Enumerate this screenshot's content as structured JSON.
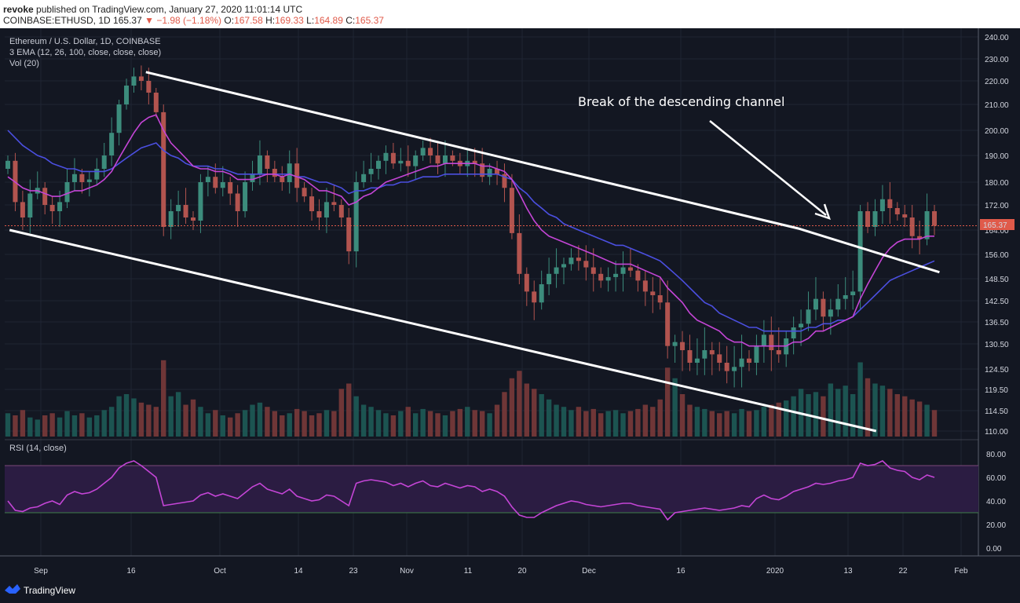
{
  "header": {
    "author": "revoke",
    "published": "published on TradingView.com, January 27, 2020 11:01:14 UTC",
    "symbol": "COINBASE:ETHUSD, 1D",
    "last": "165.37",
    "arrow": "▼",
    "change": "−1.98 (−1.18%)",
    "o_label": "O:",
    "o_value": "167.58",
    "h_label": "H:",
    "h_value": "169.33",
    "l_label": "L:",
    "l_value": "164.89",
    "c_label": "C:",
    "c_value": "165.37"
  },
  "legend": {
    "title": "Ethereum / U.S. Dollar, 1D, COINBASE",
    "ema": "3 EMA (12, 26, 100, close, close, close)",
    "vol": "Vol (20)",
    "rsi": "RSI (14, close)"
  },
  "annotation": "Break of the descending channel",
  "price_badge": "165.37",
  "brand": "TradingView",
  "colors": {
    "background": "#131722",
    "up": "#3c8c7c",
    "down": "#b2544f",
    "ema_fast": "#c445d6",
    "ema_slow": "#4b4fe0",
    "rsi_line": "#c445d6",
    "rsi_band": "#2b1c42",
    "channel": "#ffffff",
    "price_line": "#e05a4a"
  },
  "chart_data": [
    {
      "type": "candlestick",
      "x_ticks": [
        "Sep",
        "16",
        "Oct",
        "14",
        "23",
        "Nov",
        "11",
        "20",
        "Dec",
        "16",
        "2020",
        "13",
        "22",
        "Feb"
      ],
      "y_ticks": [
        "240.00",
        "230.00",
        "220.00",
        "210.00",
        "200.00",
        "190.00",
        "180.00",
        "172.00",
        "164.00",
        "156.00",
        "148.50",
        "142.50",
        "136.50",
        "130.50",
        "124.50",
        "119.50",
        "114.50",
        "110.00"
      ],
      "ylim": [
        110,
        240
      ],
      "last_price": 165.37,
      "closes": [
        188,
        173,
        168,
        176,
        178,
        172,
        170,
        173,
        180,
        183,
        180,
        181,
        185,
        190,
        199,
        210,
        218,
        222,
        220,
        215,
        207,
        165,
        170,
        172,
        168,
        167,
        180,
        182,
        178,
        180,
        176,
        170,
        180,
        183,
        190,
        185,
        182,
        180,
        187,
        178,
        175,
        170,
        168,
        173,
        172,
        168,
        157,
        180,
        183,
        185,
        188,
        191,
        187,
        188,
        186,
        190,
        193,
        190,
        187,
        190,
        188,
        186,
        188,
        187,
        182,
        185,
        183,
        178,
        163,
        150,
        145,
        142,
        147,
        150,
        152,
        153,
        155,
        154,
        152,
        150,
        148,
        149,
        150,
        152,
        151,
        148,
        145,
        144,
        142,
        130,
        131,
        129,
        126,
        127,
        129,
        128,
        126,
        124,
        125,
        127,
        126,
        130,
        133,
        129,
        128,
        132,
        135,
        136,
        140,
        143,
        138,
        140,
        143,
        144,
        145,
        170,
        165,
        170,
        174,
        171,
        169,
        168,
        162,
        161,
        170,
        165.37
      ],
      "ema_fast": [
        182,
        180,
        178,
        177,
        177,
        176,
        175,
        175,
        176,
        177,
        177,
        178,
        179,
        181,
        184,
        189,
        194,
        199,
        203,
        205,
        206,
        200,
        195,
        192,
        189,
        186,
        185,
        185,
        184,
        184,
        183,
        181,
        181,
        181,
        182,
        183,
        183,
        182,
        183,
        182,
        181,
        179,
        177,
        177,
        176,
        175,
        172,
        173,
        175,
        176,
        178,
        180,
        181,
        182,
        183,
        184,
        185,
        186,
        186,
        187,
        187,
        187,
        187,
        187,
        186,
        186,
        185,
        184,
        181,
        176,
        171,
        167,
        164,
        162,
        161,
        160,
        159,
        158,
        157,
        156,
        155,
        154,
        153,
        153,
        153,
        152,
        151,
        150,
        149,
        146,
        144,
        142,
        139,
        137,
        136,
        135,
        134,
        132,
        131,
        131,
        130,
        130,
        130,
        130,
        130,
        130,
        131,
        131,
        132,
        134,
        134,
        135,
        136,
        137,
        138,
        143,
        147,
        151,
        155,
        158,
        160,
        161,
        161,
        161,
        162,
        162
      ],
      "ema_slow": [
        200,
        197,
        194,
        192,
        190,
        189,
        187,
        186,
        185,
        185,
        184,
        184,
        184,
        184,
        185,
        187,
        189,
        191,
        193,
        194,
        195,
        192,
        190,
        189,
        187,
        186,
        186,
        186,
        185,
        185,
        184,
        183,
        183,
        183,
        183,
        183,
        183,
        183,
        183,
        182,
        182,
        181,
        180,
        180,
        179,
        178,
        176,
        177,
        177,
        178,
        178,
        179,
        179,
        180,
        180,
        181,
        182,
        182,
        182,
        183,
        183,
        183,
        183,
        183,
        183,
        183,
        183,
        182,
        181,
        178,
        176,
        173,
        171,
        169,
        168,
        166,
        165,
        164,
        163,
        162,
        161,
        160,
        159,
        159,
        158,
        157,
        156,
        155,
        154,
        152,
        150,
        148,
        146,
        144,
        142,
        141,
        139,
        138,
        137,
        136,
        135,
        135,
        134,
        134,
        134,
        134,
        134,
        134,
        135,
        135,
        136,
        136,
        137,
        137,
        138,
        140,
        142,
        144,
        146,
        148,
        149,
        150,
        151,
        152,
        153,
        154
      ],
      "channel_upper": [
        [
          0.145,
          224
        ],
        [
          0.815,
          164.5
        ],
        [
          0.96,
          150.5
        ]
      ],
      "channel_lower": [
        [
          0.005,
          164
        ],
        [
          0.895,
          110
        ]
      ],
      "volume_scale": [
        0,
        100
      ],
      "volume": [
        22,
        20,
        25,
        18,
        16,
        20,
        22,
        18,
        24,
        20,
        22,
        18,
        20,
        25,
        28,
        38,
        40,
        36,
        32,
        30,
        28,
        72,
        38,
        42,
        30,
        35,
        28,
        22,
        25,
        20,
        18,
        22,
        25,
        30,
        32,
        28,
        24,
        20,
        22,
        26,
        24,
        20,
        22,
        25,
        24,
        45,
        50,
        38,
        30,
        28,
        25,
        22,
        20,
        24,
        28,
        22,
        26,
        24,
        22,
        20,
        24,
        26,
        28,
        25,
        24,
        22,
        30,
        42,
        55,
        62,
        50,
        45,
        40,
        35,
        30,
        28,
        25,
        28,
        24,
        26,
        22,
        24,
        25,
        22,
        24,
        26,
        30,
        28,
        35,
        65,
        55,
        40,
        30,
        28,
        26,
        24,
        22,
        24,
        22,
        26,
        24,
        25,
        28,
        30,
        32,
        34,
        38,
        45,
        40,
        42,
        38,
        50,
        45,
        48,
        40,
        70,
        55,
        50,
        48,
        45,
        40,
        38,
        35,
        33,
        30,
        25
      ],
      "rsi": [
        40,
        32,
        31,
        34,
        35,
        38,
        40,
        37,
        45,
        48,
        46,
        47,
        50,
        55,
        60,
        68,
        72,
        74,
        70,
        65,
        60,
        36,
        37,
        38,
        39,
        40,
        45,
        47,
        44,
        46,
        44,
        42,
        47,
        52,
        55,
        50,
        48,
        46,
        50,
        44,
        42,
        40,
        41,
        45,
        44,
        40,
        36,
        55,
        57,
        58,
        57,
        56,
        53,
        55,
        52,
        55,
        57,
        53,
        52,
        55,
        53,
        51,
        53,
        52,
        48,
        50,
        48,
        44,
        35,
        28,
        26,
        26,
        30,
        33,
        36,
        38,
        40,
        39,
        37,
        36,
        35,
        36,
        37,
        38,
        38,
        36,
        35,
        34,
        33,
        24,
        30,
        31,
        32,
        33,
        34,
        33,
        32,
        33,
        34,
        36,
        35,
        42,
        45,
        42,
        41,
        44,
        48,
        50,
        52,
        55,
        54,
        55,
        57,
        58,
        60,
        72,
        70,
        71,
        74,
        68,
        66,
        65,
        60,
        58,
        62,
        60
      ],
      "rsi_ticks": [
        "80.00",
        "60.00",
        "40.00",
        "20.00",
        "0.00"
      ],
      "rsi_ylim": [
        0,
        80
      ],
      "rsi_band": [
        30,
        70
      ]
    }
  ]
}
